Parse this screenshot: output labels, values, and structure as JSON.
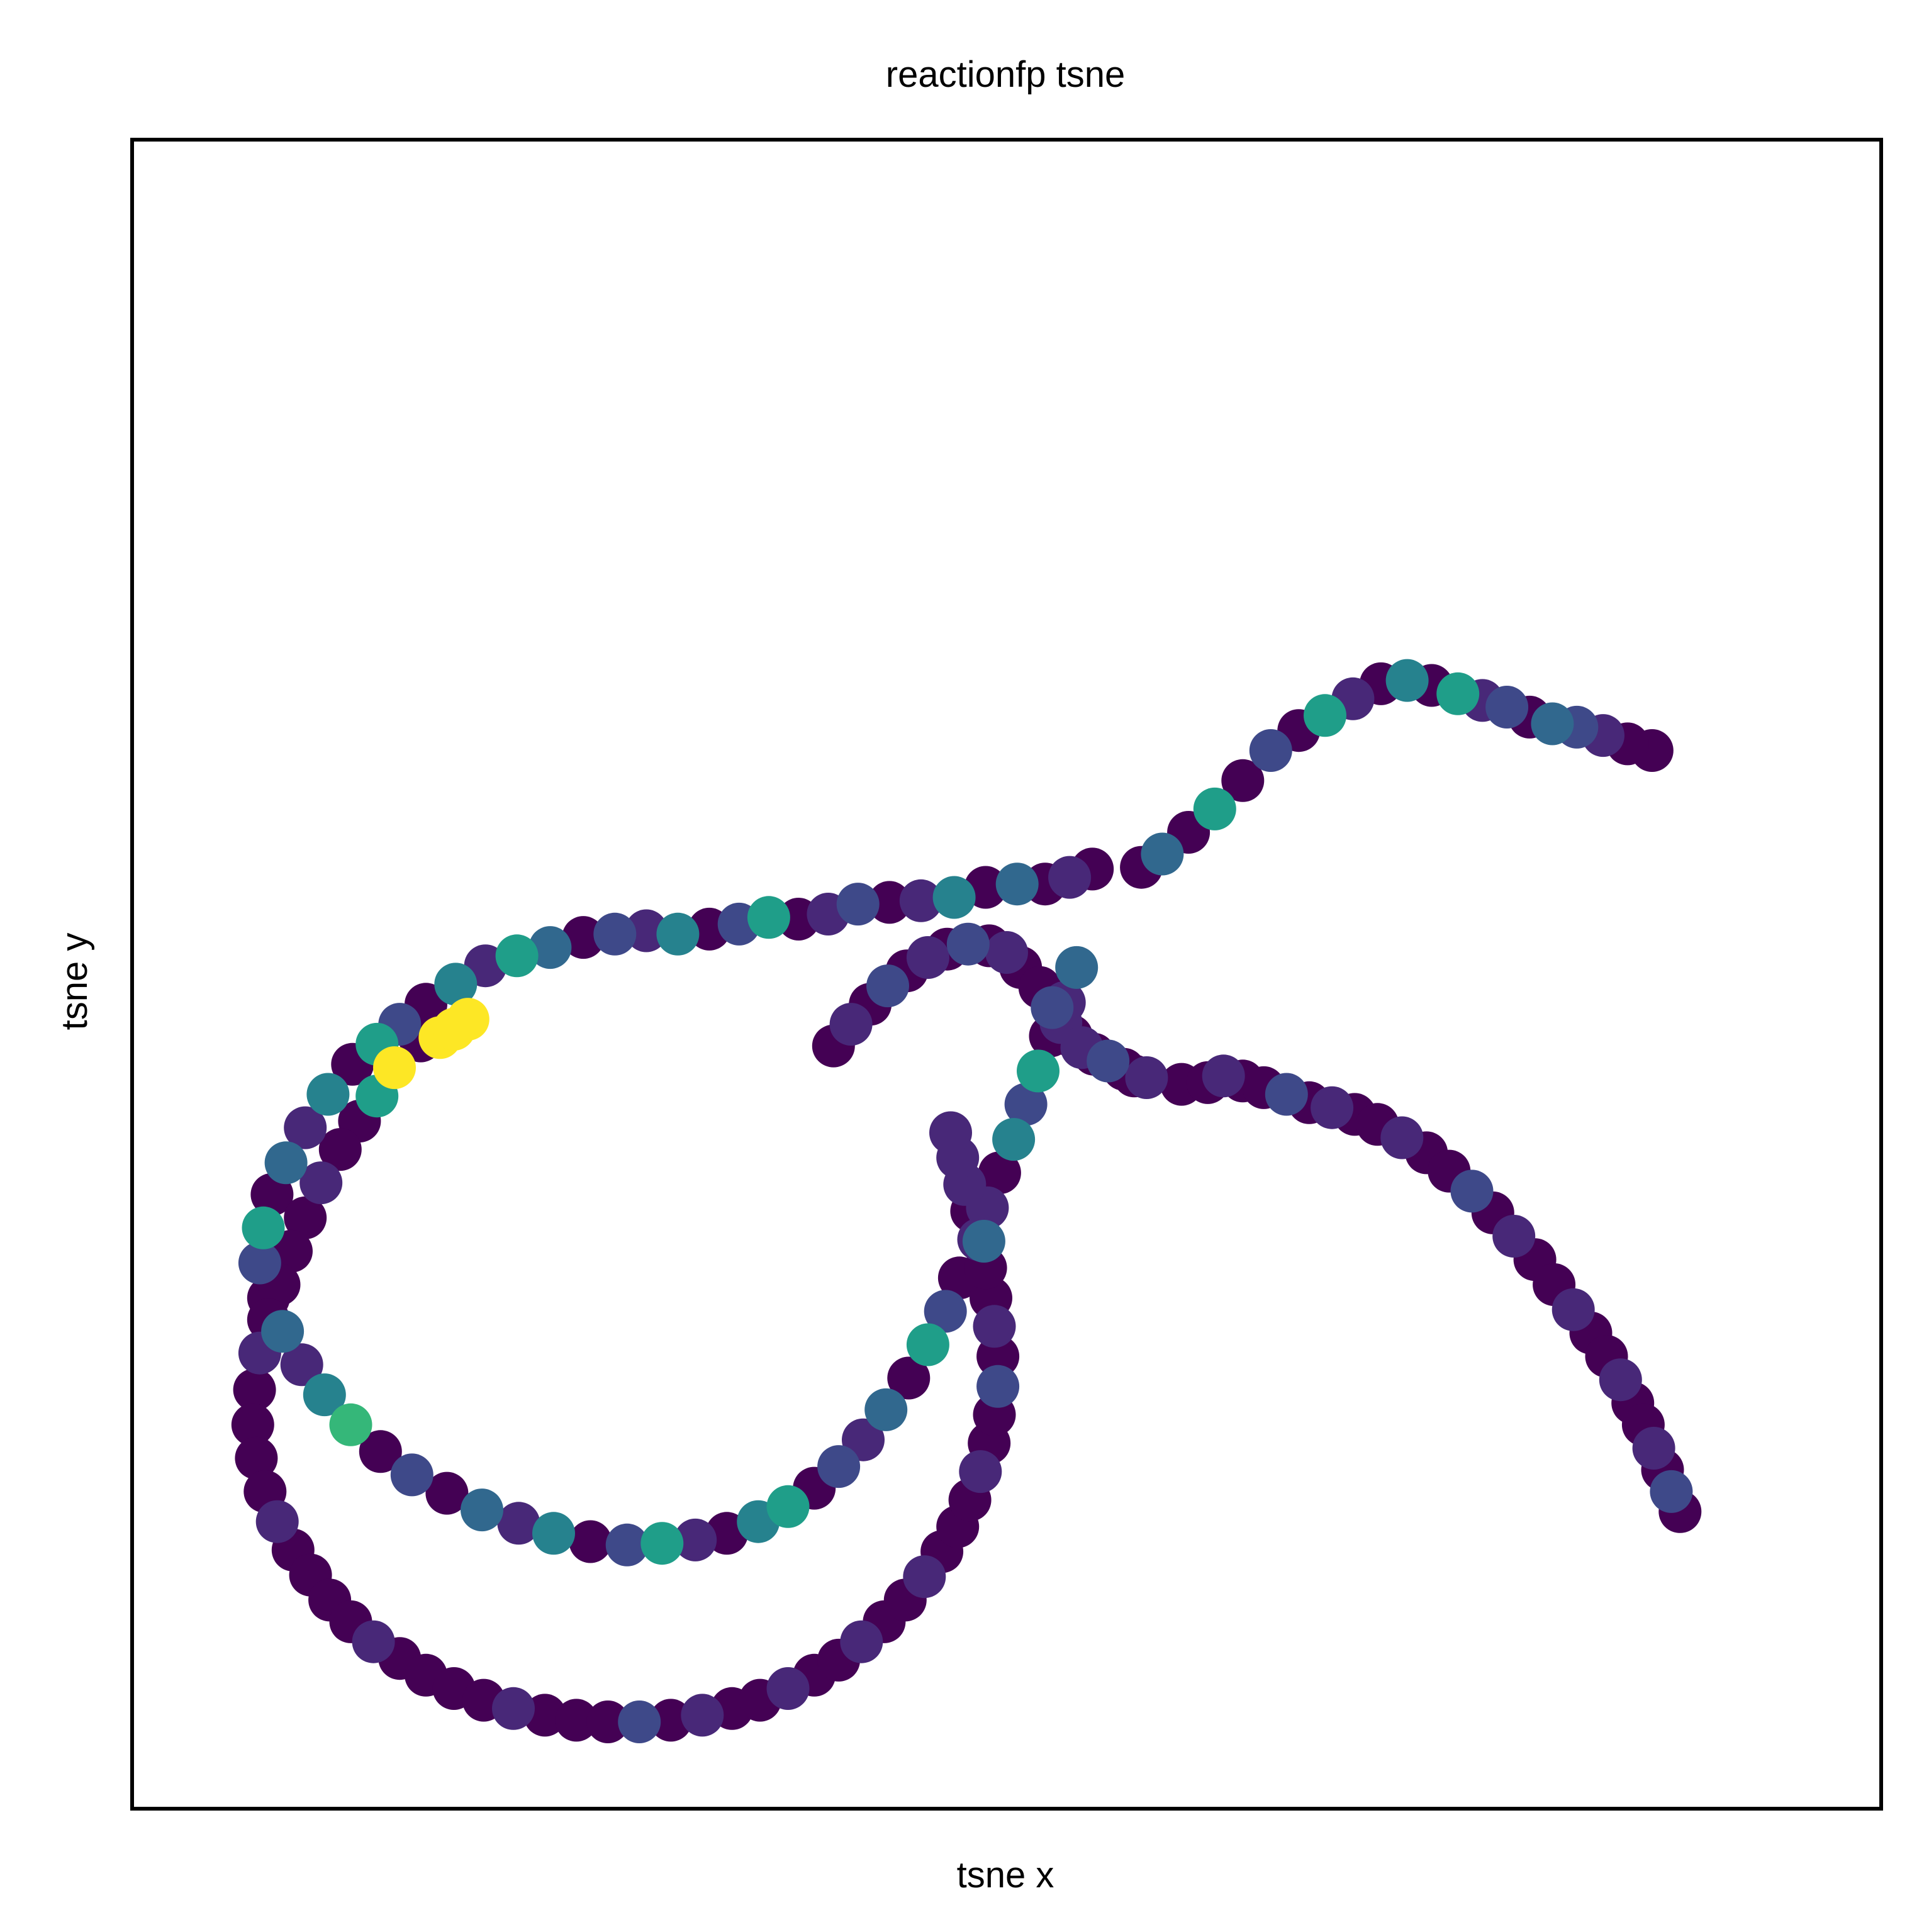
{
  "chart_data": {
    "type": "scatter",
    "title": "reactionfp tsne",
    "xlabel": "tsne x",
    "ylabel": "tsne y",
    "xlim": [
      0,
      100
    ],
    "ylim": [
      0,
      100
    ],
    "ticks_visible": false,
    "grid": false,
    "legend": "none",
    "colormap": "viridis",
    "c_range": [
      0,
      1
    ],
    "marker_color_scale": [
      "#440154",
      "#482878",
      "#3e4989",
      "#31688e",
      "#26828e",
      "#1f9e89",
      "#35b779",
      "#6ece58",
      "#b5de2b",
      "#fde725"
    ],
    "series": [
      {
        "x": [
          86.9,
          85.5,
          84.1,
          82.6,
          81.2,
          79.9,
          78.6,
          77.2,
          75.8,
          74.3,
          72.9,
          71.4,
          69.8,
          68.2,
          66.7,
          65.1,
          63.5,
          61.9,
          60.4,
          58.9,
          57.7,
          54.9,
          53.6,
          52.2,
          50.6,
          48.8,
          47.0,
          45.1,
          43.3,
          41.5,
          39.8,
          38.1,
          36.4,
          34.7,
          33.0,
          31.2,
          29.4,
          27.6,
          25.8,
          23.9,
          22.0,
          20.2,
          18.5,
          16.8,
          15.3,
          14.0,
          12.6,
          11.2,
          9.9,
          8.8,
          8.0,
          7.5,
          7.3,
          7.8,
          8.6,
          9.7,
          11.0,
          12.5,
          14.2,
          16.0,
          18.0,
          20.0,
          22.1,
          24.1,
          26.2,
          28.3,
          30.3,
          32.2,
          34.0,
          35.8,
          37.5,
          39.0,
          40.4,
          41.8,
          43.1,
          44.4,
          45.5,
          46.5,
          47.3,
          48.7,
          48.9,
          49.6,
          50.4,
          51.1,
          51.8,
          52.5,
          53.3,
          54.0
        ],
        "y": [
          63.4,
          63.8,
          64.3,
          64.8,
          65.0,
          65.4,
          66.0,
          66.4,
          66.8,
          67.3,
          67.6,
          67.4,
          66.5,
          65.5,
          64.6,
          63.4,
          61.6,
          59.9,
          58.5,
          57.2,
          56.4,
          56.3,
          55.8,
          55.4,
          55.4,
          55.2,
          54.6,
          54.4,
          54.3,
          54.2,
          53.6,
          53.3,
          53.4,
          53.0,
          52.7,
          52.4,
          52.6,
          52.4,
          52.2,
          51.6,
          51.1,
          50.5,
          49.4,
          48.2,
          47.0,
          45.8,
          44.6,
          42.8,
          40.8,
          38.7,
          36.8,
          34.8,
          32.7,
          30.6,
          28.6,
          26.6,
          24.8,
          23.0,
          21.4,
          20.0,
          18.9,
          17.9,
          17.1,
          16.5,
          16.0,
          15.8,
          15.9,
          16.1,
          16.5,
          17.2,
          18.1,
          19.2,
          20.5,
          22.1,
          23.9,
          25.8,
          27.8,
          29.8,
          31.8,
          34.0,
          36.0,
          38.1,
          40.1,
          42.2,
          44.2,
          46.3,
          48.3,
          50.4
        ],
        "c": [
          0.0,
          0.0,
          0.1,
          0.2,
          0.3,
          0.0,
          0.2,
          0.1,
          0.5,
          0.0,
          0.4,
          0.0,
          0.1,
          0.6,
          0.0,
          0.2,
          0.0,
          0.5,
          0.0,
          0.3,
          0.0,
          0.0,
          0.1,
          0.0,
          0.3,
          0.0,
          0.4,
          0.1,
          0.0,
          0.2,
          0.1,
          0.0,
          0.5,
          0.2,
          0.0,
          0.4,
          0.1,
          0.2,
          0.0,
          0.3,
          0.5,
          0.1,
          0.4,
          0.0,
          0.2,
          0.6,
          0.0,
          0.4,
          0.1,
          0.3,
          0.0,
          0.5,
          0.2,
          0.0,
          0.3,
          0.1,
          0.4,
          0.7,
          0.0,
          0.2,
          0.0,
          0.3,
          0.1,
          0.4,
          0.0,
          0.2,
          0.5,
          0.1,
          0.0,
          0.4,
          0.6,
          0.0,
          0.2,
          0.1,
          0.3,
          0.0,
          0.5,
          0.2,
          0.0,
          0.3,
          0.1,
          0.0,
          0.4,
          0.2,
          0.6,
          0.0,
          0.1,
          0.3
        ]
      },
      {
        "x": [
          40.1,
          41.1,
          42.2,
          43.2,
          44.3,
          45.5,
          46.6,
          47.8,
          49.0,
          50.0,
          50.8,
          51.9,
          52.6,
          53.1,
          53.7,
          54.3,
          55.0,
          55.8,
          56.7,
          57.3,
          58.0,
          60.0,
          61.5,
          62.4,
          63.5,
          64.7,
          66.0,
          67.3,
          68.6,
          69.9,
          71.2,
          72.6,
          74.0,
          75.3,
          76.6,
          77.8,
          79.0,
          80.2,
          81.3,
          82.4,
          83.4,
          84.3,
          85.1,
          85.8,
          86.4,
          87.0,
          87.5,
          88.0,
          88.5
        ],
        "y": [
          45.7,
          47.0,
          48.2,
          49.3,
          50.2,
          51.0,
          51.5,
          51.8,
          51.7,
          51.3,
          50.4,
          49.2,
          48.0,
          47.1,
          46.3,
          45.6,
          45.2,
          44.8,
          44.3,
          43.9,
          43.8,
          43.4,
          43.5,
          43.9,
          43.6,
          43.2,
          42.8,
          42.3,
          42.0,
          41.6,
          41.0,
          40.2,
          39.3,
          38.2,
          37.0,
          35.7,
          34.3,
          32.9,
          31.4,
          29.9,
          28.5,
          27.1,
          25.7,
          24.3,
          23.0,
          21.6,
          20.3,
          19.0,
          17.8
        ],
        "c": [
          0.0,
          0.1,
          0.0,
          0.2,
          0.0,
          0.1,
          0.0,
          0.2,
          0.0,
          0.1,
          0.0,
          0.0,
          0.2,
          0.1,
          0.0,
          0.1,
          0.0,
          0.2,
          0.0,
          0.0,
          0.1,
          0.0,
          0.0,
          0.1,
          0.0,
          0.0,
          0.2,
          0.0,
          0.1,
          0.0,
          0.0,
          0.1,
          0.0,
          0.0,
          0.2,
          0.0,
          0.1,
          0.0,
          0.0,
          0.1,
          0.0,
          0.0,
          0.1,
          0.0,
          0.0,
          0.1,
          0.0,
          0.2,
          0.0
        ]
      },
      {
        "x": [
          19.2,
          18.4,
          17.6,
          16.5,
          15.0,
          14.0,
          13.0,
          11.9,
          10.8,
          9.9,
          9.1,
          8.4,
          7.8,
          7.3,
          7.0,
          6.9,
          7.1,
          7.6,
          8.3,
          9.2,
          10.2,
          11.3,
          12.5,
          13.8,
          15.3,
          16.8,
          18.4,
          20.1,
          21.8,
          23.6,
          25.4,
          27.2,
          29.0,
          30.8,
          32.6,
          34.3,
          35.9,
          37.5,
          39.0,
          40.4,
          41.7,
          43.0,
          44.2,
          45.3,
          46.3,
          47.2,
          47.9,
          48.5,
          49.0,
          49.3,
          49.5,
          49.5,
          49.3,
          49.1,
          48.8,
          48.4,
          48.0,
          47.6,
          47.2,
          46.8
        ],
        "y": [
          47.3,
          46.7,
          46.2,
          46.0,
          44.4,
          42.7,
          41.2,
          39.5,
          37.5,
          35.4,
          33.4,
          31.4,
          29.3,
          27.3,
          25.1,
          23.0,
          21.0,
          19.0,
          17.2,
          15.5,
          14.0,
          12.5,
          11.2,
          10.0,
          9.0,
          8.0,
          7.2,
          6.5,
          6.0,
          5.6,
          5.3,
          5.2,
          5.2,
          5.3,
          5.6,
          6.0,
          6.5,
          7.2,
          8.0,
          8.9,
          10.0,
          11.2,
          12.5,
          13.9,
          15.4,
          16.9,
          18.5,
          20.2,
          21.9,
          23.6,
          25.3,
          27.1,
          28.9,
          30.6,
          32.4,
          34.1,
          35.8,
          37.4,
          39.0,
          40.5
        ],
        "c": [
          1.0,
          1.0,
          0.95,
          0.0,
          1.0,
          0.6,
          0.0,
          0.0,
          0.1,
          0.0,
          0.0,
          0.0,
          0.0,
          0.1,
          0.0,
          0.0,
          0.0,
          0.0,
          0.1,
          0.0,
          0.0,
          0.0,
          0.0,
          0.1,
          0.0,
          0.0,
          0.0,
          0.0,
          0.1,
          0.0,
          0.0,
          0.0,
          0.2,
          0.0,
          0.1,
          0.0,
          0.0,
          0.1,
          0.0,
          0.0,
          0.1,
          0.0,
          0.0,
          0.1,
          0.0,
          0.0,
          0.0,
          0.1,
          0.0,
          0.0,
          0.2,
          0.0,
          0.1,
          0.0,
          0.0,
          0.1,
          0.0,
          0.1,
          0.1,
          0.1
        ]
      }
    ]
  }
}
